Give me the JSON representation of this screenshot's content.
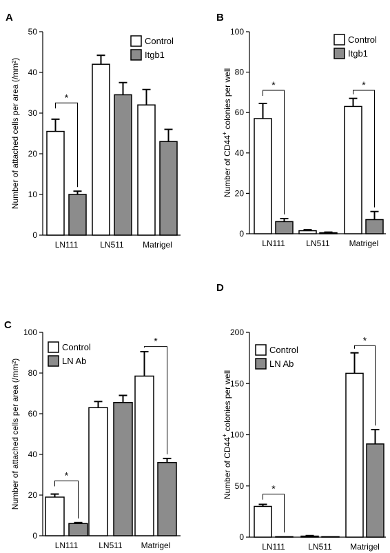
{
  "colors": {
    "control": "#ffffff",
    "treated": "#8c8c8c",
    "ink": "#000000"
  },
  "chart_data": [
    {
      "type": "bar",
      "panel": "A",
      "ylabel": "Number of attached cells per area (/mm²)",
      "ylim": [
        0,
        50
      ],
      "yticks": [
        0,
        10,
        20,
        30,
        40,
        50
      ],
      "categories": [
        "LN111",
        "LN511",
        "Matrigel"
      ],
      "series": [
        {
          "name": "Control",
          "values": [
            25.5,
            42,
            32
          ],
          "errors": [
            3,
            2.2,
            3.8
          ]
        },
        {
          "name": "Itgb1",
          "values": [
            10,
            34.5,
            23
          ],
          "errors": [
            0.8,
            3,
            3
          ]
        }
      ],
      "significance": [
        {
          "category": 0,
          "label": "*",
          "bracket_y": 32.5
        }
      ],
      "legend": "top-right"
    },
    {
      "type": "bar",
      "panel": "B",
      "ylabel": "Number of CD44+ colonies per well",
      "ylabel_main": "Number of CD44",
      "ylabel_sup": "+",
      "ylabel_rest": " colonies per well",
      "ylim": [
        0,
        100
      ],
      "yticks": [
        0,
        20,
        40,
        60,
        80,
        100
      ],
      "categories": [
        "LN111",
        "LN511",
        "Matrigel"
      ],
      "series": [
        {
          "name": "Control",
          "values": [
            57,
            1.5,
            63
          ],
          "errors": [
            7.5,
            0.5,
            4
          ]
        },
        {
          "name": "Itgb1",
          "values": [
            6,
            0.5,
            7
          ],
          "errors": [
            1.5,
            0.3,
            4
          ]
        }
      ],
      "significance": [
        {
          "category": 0,
          "label": "*",
          "bracket_y": 71
        },
        {
          "category": 2,
          "label": "*",
          "bracket_y": 71
        }
      ],
      "legend": "top-right"
    },
    {
      "type": "bar",
      "panel": "C",
      "ylabel": "Number of attached cells per area (/mm²)",
      "ylim": [
        0,
        100
      ],
      "yticks": [
        0,
        20,
        40,
        60,
        80,
        100
      ],
      "categories": [
        "LN111",
        "LN511",
        "Matrigel"
      ],
      "series": [
        {
          "name": "Control",
          "values": [
            19,
            63,
            78.5
          ],
          "errors": [
            1.5,
            3,
            12
          ]
        },
        {
          "name": "LN Ab",
          "values": [
            6,
            65.5,
            36
          ],
          "errors": [
            0.5,
            3.5,
            2
          ]
        }
      ],
      "significance": [
        {
          "category": 0,
          "label": "*",
          "bracket_y": 27
        },
        {
          "category": 2,
          "label": "*",
          "bracket_y": 93
        }
      ],
      "legend": "top-left"
    },
    {
      "type": "bar",
      "panel": "D",
      "ylabel": "Number of CD44+ colonies per well",
      "ylabel_main": "Number of CD44",
      "ylabel_sup": "+",
      "ylabel_rest": " colonies per well",
      "ylim": [
        0,
        200
      ],
      "yticks": [
        0,
        50,
        100,
        150,
        200
      ],
      "categories": [
        "LN111",
        "LN511",
        "Matrigel"
      ],
      "series": [
        {
          "name": "Control",
          "values": [
            30,
            1,
            160
          ],
          "errors": [
            2,
            0.5,
            20
          ]
        },
        {
          "name": "LN Ab",
          "values": [
            0.5,
            0.5,
            91
          ],
          "errors": [
            0,
            0,
            14
          ]
        }
      ],
      "significance": [
        {
          "category": 0,
          "label": "*",
          "bracket_y": 42
        },
        {
          "category": 2,
          "label": "*",
          "bracket_y": 187
        }
      ],
      "legend": "top-left"
    }
  ]
}
